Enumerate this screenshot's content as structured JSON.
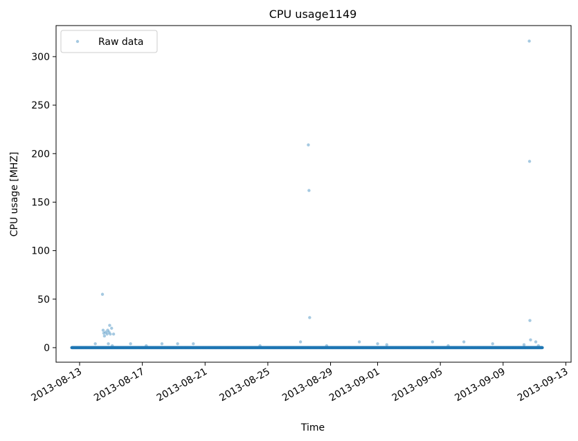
{
  "chart_data": {
    "type": "scatter",
    "title": "CPU usage1149",
    "xlabel": "Time",
    "ylabel": "CPU usage [MHZ]",
    "x_type": "date",
    "xlim": [
      "2013-08-11T12:00",
      "2013-09-13T08:00"
    ],
    "ylim": [
      -15,
      332
    ],
    "x_ticks": [
      "2013-08-13",
      "2013-08-17",
      "2013-08-21",
      "2013-08-25",
      "2013-08-29",
      "2013-09-01",
      "2013-09-05",
      "2013-09-09",
      "2013-09-13"
    ],
    "y_ticks": [
      0,
      50,
      100,
      150,
      200,
      250,
      300
    ],
    "grid": false,
    "legend": {
      "position": "upper-left",
      "entries": [
        "Raw data"
      ]
    },
    "series": [
      {
        "name": "Raw data",
        "color": "#1f77b4",
        "alpha": 0.4,
        "marker": "point",
        "baseline": {
          "start": "2013-08-12T12:00",
          "end": "2013-09-11T12:00",
          "y": 0
        },
        "points": [
          {
            "x": "2013-08-14T00:00",
            "y": 4
          },
          {
            "x": "2013-08-14T11:00",
            "y": 55
          },
          {
            "x": "2013-08-14T12:00",
            "y": 18
          },
          {
            "x": "2013-08-14T13:00",
            "y": 15
          },
          {
            "x": "2013-08-14T14:00",
            "y": 12
          },
          {
            "x": "2013-08-14T16:00",
            "y": 16
          },
          {
            "x": "2013-08-14T18:00",
            "y": 14
          },
          {
            "x": "2013-08-14T19:00",
            "y": 18
          },
          {
            "x": "2013-08-14T20:00",
            "y": 4
          },
          {
            "x": "2013-08-14T21:00",
            "y": 16
          },
          {
            "x": "2013-08-14T22:00",
            "y": 23
          },
          {
            "x": "2013-08-14T23:00",
            "y": 14
          },
          {
            "x": "2013-08-15T01:00",
            "y": 20
          },
          {
            "x": "2013-08-15T02:00",
            "y": 2
          },
          {
            "x": "2013-08-15T04:00",
            "y": 14
          },
          {
            "x": "2013-08-16T06:00",
            "y": 4
          },
          {
            "x": "2013-08-17T06:00",
            "y": 2
          },
          {
            "x": "2013-08-18T06:00",
            "y": 4
          },
          {
            "x": "2013-08-19T06:00",
            "y": 4
          },
          {
            "x": "2013-08-20T06:00",
            "y": 4
          },
          {
            "x": "2013-08-24T12:00",
            "y": 2
          },
          {
            "x": "2013-08-27T02:00",
            "y": 6
          },
          {
            "x": "2013-08-27T14:00",
            "y": 209
          },
          {
            "x": "2013-08-27T15:00",
            "y": 162
          },
          {
            "x": "2013-08-27T16:00",
            "y": 31
          },
          {
            "x": "2013-08-28T18:00",
            "y": 2
          },
          {
            "x": "2013-08-30T20:00",
            "y": 6
          },
          {
            "x": "2013-09-01T00:00",
            "y": 4
          },
          {
            "x": "2013-09-01T14:00",
            "y": 3
          },
          {
            "x": "2013-09-04T12:00",
            "y": 6
          },
          {
            "x": "2013-09-05T12:00",
            "y": 2
          },
          {
            "x": "2013-09-06T12:00",
            "y": 6
          },
          {
            "x": "2013-09-08T08:00",
            "y": 4
          },
          {
            "x": "2013-09-10T08:00",
            "y": 3
          },
          {
            "x": "2013-09-10T16:00",
            "y": 316
          },
          {
            "x": "2013-09-10T16:30",
            "y": 192
          },
          {
            "x": "2013-09-10T17:00",
            "y": 28
          },
          {
            "x": "2013-09-10T18:00",
            "y": 8
          },
          {
            "x": "2013-09-11T02:00",
            "y": 6
          },
          {
            "x": "2013-09-11T06:00",
            "y": 2
          }
        ]
      }
    ]
  }
}
